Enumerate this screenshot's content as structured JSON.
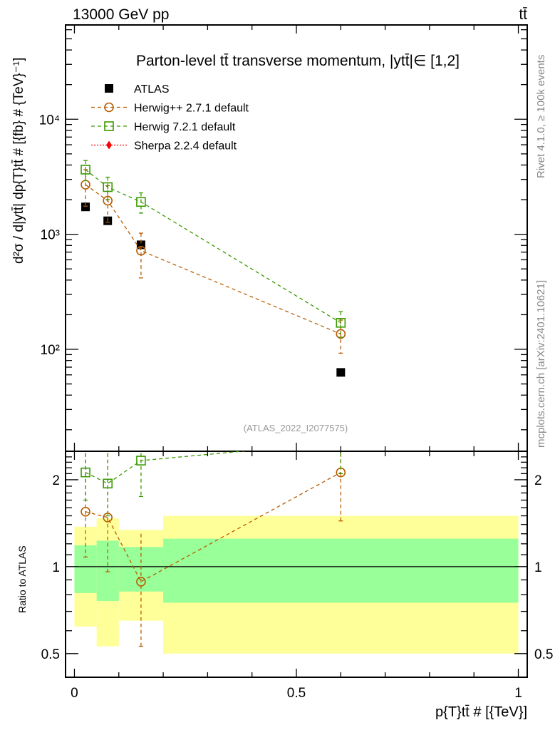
{
  "header": {
    "left": "13000 GeV pp",
    "right": "tt̄"
  },
  "side_text": {
    "rivet": "Rivet 4.1.0, ≥ 100k events",
    "mcplots": "mcplots.cern.ch [arXiv:2401.10621]"
  },
  "chart_data": [
    {
      "type": "scatter",
      "title": "Parton-level tt̄ transverse momentum, |ytt̄|∈ [1,2]",
      "ylabel": "d²σ / d|ytt̄| dp{T}tt̄ # [{fb} # {TeV}⁻¹]",
      "yscale": "log",
      "ylim": [
        13,
        66000
      ],
      "xlim": [
        -0.02,
        1.02
      ],
      "yticks": [
        {
          "v": 100,
          "label": "10²"
        },
        {
          "v": 1000,
          "label": "10³"
        },
        {
          "v": 10000,
          "label": "10⁴"
        }
      ],
      "watermark": "(ATLAS_2022_I2077575)",
      "legend_position": "top-left",
      "x": [
        0.025,
        0.075,
        0.15,
        0.6
      ],
      "bins": [
        [
          0,
          0.05
        ],
        [
          0.05,
          0.1
        ],
        [
          0.1,
          0.2
        ],
        [
          0.2,
          1.0
        ]
      ],
      "series": [
        {
          "name": "ATLAS",
          "color": "#000000",
          "marker": "square-filled",
          "values": [
            1730,
            1310,
            810,
            63
          ]
        },
        {
          "name": "Herwig++ 2.7.1 default",
          "color": "#b85c00",
          "marker": "circle-open",
          "values": [
            2700,
            1960,
            720,
            136
          ],
          "rel_err": [
            0.35,
            0.35,
            0.42,
            0.32
          ]
        },
        {
          "name": "Herwig 7.2.1 default",
          "color": "#3a9a00",
          "marker": "square-open",
          "values": [
            3650,
            2570,
            1910,
            170
          ],
          "rel_err": [
            0.2,
            0.22,
            0.2,
            0.25
          ]
        },
        {
          "name": "Sherpa 2.2.4 default",
          "color": "#ff0000",
          "marker": "diamond-filled",
          "values": []
        }
      ]
    },
    {
      "type": "scatter",
      "ylabel": "Ratio to ATLAS",
      "yscale": "log",
      "ylim": [
        0.414,
        2.51
      ],
      "yticks": [
        {
          "v": 0.5,
          "label": "0.5"
        },
        {
          "v": 1,
          "label": "1"
        },
        {
          "v": 2,
          "label": "2"
        }
      ],
      "xlabel": "p{T}tt̄ # [{TeV}]",
      "xticks": [
        {
          "v": 0,
          "label": "0"
        },
        {
          "v": 0.5,
          "label": "0.5"
        },
        {
          "v": 1,
          "label": "1"
        }
      ],
      "bands": {
        "yellow": [
          [
            0.62,
            1.375
          ],
          [
            0.53,
            1.47
          ],
          [
            0.65,
            1.34
          ],
          [
            0.5,
            1.5
          ]
        ],
        "green": [
          [
            0.81,
            1.186
          ],
          [
            0.76,
            1.23
          ],
          [
            0.82,
            1.17
          ],
          [
            0.75,
            1.25
          ]
        ]
      },
      "series": [
        {
          "name": "Herwig++ 2.7.1 default",
          "values": [
            1.55,
            1.48,
            0.887,
            2.12
          ],
          "lo": [
            1.08,
            0.96,
            0.53,
            1.44
          ],
          "hi": [
            2.6,
            2.6,
            1.3,
            2.6
          ]
        },
        {
          "name": "Herwig 7.2.1 default",
          "values": [
            2.12,
            1.94,
            2.33,
            2.7
          ],
          "lo": [
            1.7,
            1.5,
            1.75,
            2.1
          ],
          "hi": [
            2.6,
            2.6,
            2.6,
            3.2
          ]
        }
      ]
    }
  ]
}
